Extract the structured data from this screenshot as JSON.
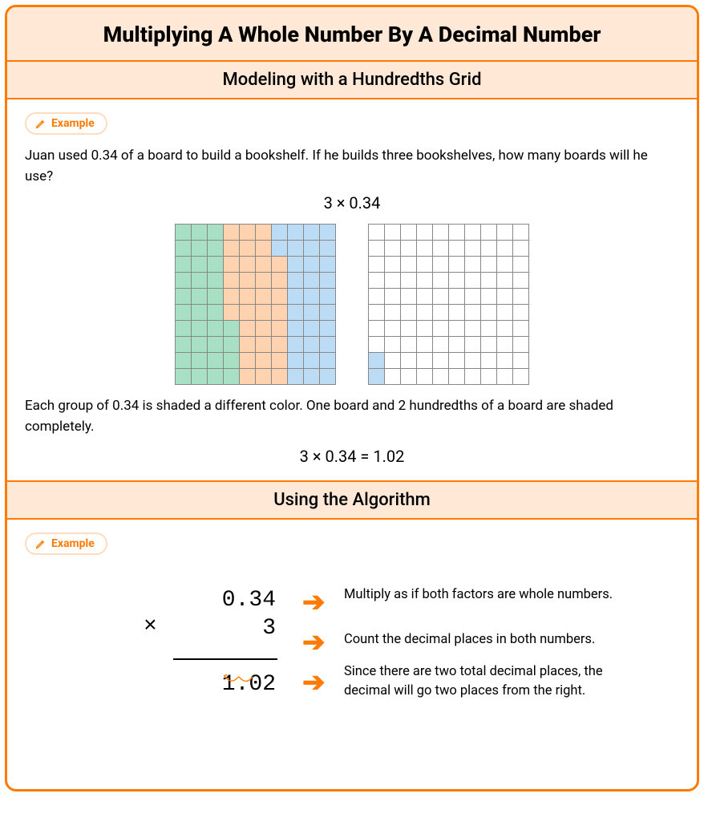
{
  "title": "Multiplying A Whole Number By A Decimal Number",
  "section1": {
    "title": "Modeling with a Hundredths Grid",
    "badge": "Example",
    "intro": "Juan used 0.34 of a board to build a bookshelf. If he builds three bookshelves, how many boards will he use?",
    "expression": "3 × 0.34",
    "grid1": {
      "rows": 10,
      "cols": 10,
      "cells": [
        [
          "g",
          "g",
          "g",
          "o",
          "o",
          "o",
          "b",
          "b",
          "b",
          "b"
        ],
        [
          "g",
          "g",
          "g",
          "o",
          "o",
          "o",
          "b",
          "b",
          "b",
          "b"
        ],
        [
          "g",
          "g",
          "g",
          "o",
          "o",
          "o",
          "o",
          "b",
          "b",
          "b"
        ],
        [
          "g",
          "g",
          "g",
          "o",
          "o",
          "o",
          "o",
          "b",
          "b",
          "b"
        ],
        [
          "g",
          "g",
          "g",
          "o",
          "o",
          "o",
          "o",
          "b",
          "b",
          "b"
        ],
        [
          "g",
          "g",
          "g",
          "o",
          "o",
          "o",
          "o",
          "b",
          "b",
          "b"
        ],
        [
          "g",
          "g",
          "g",
          "g",
          "o",
          "o",
          "o",
          "b",
          "b",
          "b"
        ],
        [
          "g",
          "g",
          "g",
          "g",
          "o",
          "o",
          "o",
          "b",
          "b",
          "b"
        ],
        [
          "g",
          "g",
          "g",
          "g",
          "o",
          "o",
          "o",
          "b",
          "b",
          "b"
        ],
        [
          "g",
          "g",
          "g",
          "g",
          "o",
          "o",
          "o",
          "b",
          "b",
          "b"
        ]
      ],
      "colors": {
        "g": "#a8e0c3",
        "o": "#ffd2b0",
        "b": "#bcdcf5",
        "w": "#ffffff"
      },
      "grid_line_color": "#888888"
    },
    "grid2": {
      "rows": 10,
      "cols": 10,
      "cells": [
        [
          "w",
          "w",
          "w",
          "w",
          "w",
          "w",
          "w",
          "w",
          "w",
          "w"
        ],
        [
          "w",
          "w",
          "w",
          "w",
          "w",
          "w",
          "w",
          "w",
          "w",
          "w"
        ],
        [
          "w",
          "w",
          "w",
          "w",
          "w",
          "w",
          "w",
          "w",
          "w",
          "w"
        ],
        [
          "w",
          "w",
          "w",
          "w",
          "w",
          "w",
          "w",
          "w",
          "w",
          "w"
        ],
        [
          "w",
          "w",
          "w",
          "w",
          "w",
          "w",
          "w",
          "w",
          "w",
          "w"
        ],
        [
          "w",
          "w",
          "w",
          "w",
          "w",
          "w",
          "w",
          "w",
          "w",
          "w"
        ],
        [
          "w",
          "w",
          "w",
          "w",
          "w",
          "w",
          "w",
          "w",
          "w",
          "w"
        ],
        [
          "w",
          "w",
          "w",
          "w",
          "w",
          "w",
          "w",
          "w",
          "w",
          "w"
        ],
        [
          "b",
          "w",
          "w",
          "w",
          "w",
          "w",
          "w",
          "w",
          "w",
          "w"
        ],
        [
          "b",
          "w",
          "w",
          "w",
          "w",
          "w",
          "w",
          "w",
          "w",
          "w"
        ]
      ],
      "colors": {
        "b": "#bcdcf5",
        "w": "#ffffff"
      },
      "grid_line_color": "#888888"
    },
    "explain": "Each group of 0.34 is shaded a different color. One board and 2 hundredths of a board are shaded completely.",
    "conclusion": "3 × 0.34 = 1.02"
  },
  "section2": {
    "title": "Using the Algorithm",
    "badge": "Example",
    "calc": {
      "factor1": "0.34",
      "factor2": "3",
      "product": "1.02",
      "times_symbol": "×",
      "arc_color": "#ff7a00",
      "arrow_glyph": "➔"
    },
    "steps": [
      "Multiply as if both factors are whole numbers.",
      "Count the decimal places in both numbers.",
      "Since there are two total decimal places, the decimal will go two places from the right."
    ]
  },
  "styling": {
    "accent": "#ff7a00",
    "header_bg": "#ffe8d6",
    "border_radius": 14,
    "title_fontsize": 27,
    "section_title_fontsize": 22,
    "body_fontsize": 17
  }
}
